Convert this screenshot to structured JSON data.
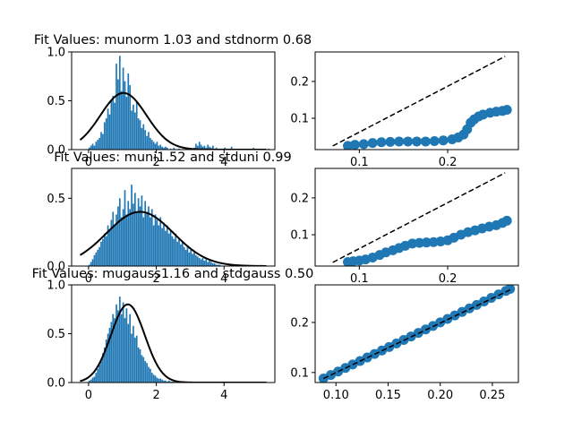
{
  "figure": {
    "background": "#ffffff",
    "bar_color": "#1f77b4",
    "fit_color": "#000000",
    "qq_color": "#1f77b4"
  },
  "chart_data": [
    {
      "type": "bar",
      "panel": "hist-norm",
      "title": "Fit Values: munorm 1.03 and stdnorm 0.68",
      "xlabel": "",
      "ylabel": "",
      "xlim": [
        -0.5,
        5.5
      ],
      "ylim": [
        0,
        1.0
      ],
      "xticks": [
        0,
        2,
        4
      ],
      "yticks": [
        0.0,
        0.5,
        1.0
      ],
      "ytick_labels": [
        "0.0",
        "0.5",
        "1.0"
      ],
      "bin_start": 0.0,
      "bin_width": 0.05,
      "values": [
        0.02,
        0.04,
        0.06,
        0.04,
        0.08,
        0.1,
        0.12,
        0.18,
        0.16,
        0.28,
        0.32,
        0.42,
        0.36,
        0.5,
        0.55,
        0.48,
        0.88,
        0.72,
        0.96,
        0.6,
        0.84,
        0.7,
        0.54,
        0.78,
        0.66,
        0.4,
        0.46,
        0.38,
        0.5,
        0.32,
        0.3,
        0.22,
        0.26,
        0.2,
        0.14,
        0.18,
        0.12,
        0.1,
        0.08,
        0.06,
        0.08,
        0.04,
        0.05,
        0.03,
        0.02,
        0.03,
        0.02,
        0,
        0.01,
        0,
        0.02,
        0,
        0,
        0.01,
        0,
        0,
        0,
        0,
        0,
        0,
        0,
        0,
        0.02,
        0.06,
        0.04,
        0.08,
        0.05,
        0.03,
        0.04,
        0.02,
        0.05,
        0.03,
        0.02,
        0.04,
        0.01,
        0.02,
        0,
        0,
        0.01,
        0,
        0.02,
        0.01,
        0,
        0,
        0.03,
        0.01,
        0,
        0,
        0,
        0,
        0,
        0.01,
        0,
        0,
        0,
        0,
        0,
        0.02,
        0,
        0,
        0,
        0,
        0,
        0,
        0,
        0,
        0.01
      ],
      "fit": {
        "mu": 1.03,
        "sigma": 0.68,
        "peak": 0.58,
        "x_range": [
          -0.25,
          5.25
        ]
      }
    },
    {
      "type": "scatter",
      "panel": "qq-norm",
      "title": "",
      "xlim": [
        0.05,
        0.28
      ],
      "ylim": [
        0.015,
        0.28
      ],
      "xticks": [
        0.1,
        0.2
      ],
      "xtick_labels": [
        "0.1",
        "0.2"
      ],
      "yticks": [
        0.1,
        0.2
      ],
      "ytick_labels": [
        "0.1",
        "0.2"
      ],
      "reference_line": [
        [
          0.07,
          0.025
        ],
        [
          0.265,
          0.268
        ]
      ],
      "points": [
        [
          0.087,
          0.025
        ],
        [
          0.095,
          0.028
        ],
        [
          0.105,
          0.03
        ],
        [
          0.115,
          0.033
        ],
        [
          0.125,
          0.035
        ],
        [
          0.135,
          0.036
        ],
        [
          0.145,
          0.037
        ],
        [
          0.155,
          0.037
        ],
        [
          0.165,
          0.037
        ],
        [
          0.175,
          0.037
        ],
        [
          0.185,
          0.038
        ],
        [
          0.195,
          0.04
        ],
        [
          0.205,
          0.043
        ],
        [
          0.212,
          0.048
        ],
        [
          0.218,
          0.056
        ],
        [
          0.222,
          0.07
        ],
        [
          0.226,
          0.088
        ],
        [
          0.23,
          0.097
        ],
        [
          0.235,
          0.105
        ],
        [
          0.24,
          0.11
        ],
        [
          0.248,
          0.115
        ],
        [
          0.255,
          0.118
        ],
        [
          0.262,
          0.12
        ],
        [
          0.267,
          0.123
        ]
      ]
    },
    {
      "type": "bar",
      "panel": "hist-uni",
      "title": "Fit Values: muni1.52 and stduni 0.99",
      "xlabel": "",
      "ylabel": "",
      "xlim": [
        -0.5,
        5.5
      ],
      "ylim": [
        0,
        0.72
      ],
      "xticks": [
        0,
        2,
        4
      ],
      "yticks": [
        0.0,
        0.5
      ],
      "ytick_labels": [
        "0.0",
        "0.5"
      ],
      "bin_start": 0.0,
      "bin_width": 0.05,
      "values": [
        0.01,
        0.03,
        0.05,
        0.08,
        0.1,
        0.12,
        0.14,
        0.18,
        0.2,
        0.24,
        0.22,
        0.3,
        0.26,
        0.34,
        0.4,
        0.3,
        0.38,
        0.44,
        0.5,
        0.36,
        0.42,
        0.56,
        0.38,
        0.48,
        0.42,
        0.6,
        0.46,
        0.54,
        0.4,
        0.5,
        0.44,
        0.52,
        0.36,
        0.48,
        0.4,
        0.44,
        0.36,
        0.42,
        0.3,
        0.38,
        0.34,
        0.3,
        0.36,
        0.28,
        0.32,
        0.26,
        0.3,
        0.24,
        0.26,
        0.22,
        0.2,
        0.24,
        0.18,
        0.2,
        0.16,
        0.18,
        0.14,
        0.12,
        0.15,
        0.1,
        0.12,
        0.09,
        0.1,
        0.08,
        0.07,
        0.06,
        0.05,
        0.06,
        0.04,
        0.05,
        0.03,
        0.04,
        0.03,
        0.02,
        0.02,
        0.01,
        0.01,
        0.01
      ],
      "fit": {
        "mu": 1.52,
        "sigma": 0.99,
        "peak": 0.4,
        "x_range": [
          -0.25,
          5.25
        ]
      }
    },
    {
      "type": "scatter",
      "panel": "qq-uni",
      "title": "",
      "xlim": [
        0.05,
        0.28
      ],
      "ylim": [
        0.015,
        0.28
      ],
      "xticks": [
        0.1,
        0.2
      ],
      "xtick_labels": [
        "0.1",
        "0.2"
      ],
      "yticks": [
        0.1,
        0.2
      ],
      "ytick_labels": [
        "0.1",
        "0.2"
      ],
      "reference_line": [
        [
          0.07,
          0.025
        ],
        [
          0.265,
          0.268
        ]
      ],
      "points": [
        [
          0.087,
          0.026
        ],
        [
          0.093,
          0.028
        ],
        [
          0.1,
          0.03
        ],
        [
          0.107,
          0.033
        ],
        [
          0.115,
          0.038
        ],
        [
          0.123,
          0.045
        ],
        [
          0.13,
          0.052
        ],
        [
          0.138,
          0.058
        ],
        [
          0.145,
          0.064
        ],
        [
          0.152,
          0.07
        ],
        [
          0.16,
          0.076
        ],
        [
          0.168,
          0.078
        ],
        [
          0.176,
          0.079
        ],
        [
          0.184,
          0.08
        ],
        [
          0.192,
          0.082
        ],
        [
          0.2,
          0.085
        ],
        [
          0.207,
          0.092
        ],
        [
          0.215,
          0.1
        ],
        [
          0.223,
          0.107
        ],
        [
          0.231,
          0.112
        ],
        [
          0.239,
          0.117
        ],
        [
          0.247,
          0.122
        ],
        [
          0.255,
          0.126
        ],
        [
          0.262,
          0.132
        ],
        [
          0.267,
          0.138
        ]
      ]
    },
    {
      "type": "bar",
      "panel": "hist-gauss",
      "title": "Fit Values: mugauss1.16 and stdgauss 0.50",
      "xlabel": "",
      "ylabel": "",
      "xlim": [
        -0.5,
        5.5
      ],
      "ylim": [
        0,
        1.0
      ],
      "xticks": [
        0,
        2,
        4
      ],
      "xtick_labels": [
        "0",
        "2",
        "4"
      ],
      "yticks": [
        0.0,
        0.5,
        1.0
      ],
      "ytick_labels": [
        "0.0",
        "0.5",
        "1.0"
      ],
      "bin_start": 0.0,
      "bin_width": 0.05,
      "values": [
        0.02,
        0.03,
        0.05,
        0.06,
        0.1,
        0.14,
        0.18,
        0.22,
        0.3,
        0.36,
        0.44,
        0.5,
        0.56,
        0.62,
        0.7,
        0.66,
        0.8,
        0.74,
        0.88,
        0.7,
        0.82,
        0.66,
        0.76,
        0.6,
        0.7,
        0.5,
        0.58,
        0.46,
        0.48,
        0.36,
        0.34,
        0.28,
        0.26,
        0.22,
        0.2,
        0.16,
        0.14,
        0.1,
        0.08,
        0.07,
        0.05,
        0.04,
        0.04,
        0.03,
        0.02,
        0.02,
        0.01,
        0.02,
        0.01,
        0.01,
        0.01,
        0,
        0.01
      ],
      "fit": {
        "mu": 1.16,
        "sigma": 0.5,
        "peak": 0.8,
        "x_range": [
          -0.25,
          5.25
        ]
      }
    },
    {
      "type": "scatter",
      "panel": "qq-gauss",
      "title": "",
      "xlim": [
        0.08,
        0.275
      ],
      "ylim": [
        0.08,
        0.275
      ],
      "xticks": [
        0.1,
        0.15,
        0.2,
        0.25
      ],
      "xtick_labels": [
        "0.10",
        "0.15",
        "0.20",
        "0.25"
      ],
      "yticks": [
        0.1,
        0.2
      ],
      "ytick_labels": [
        "0.1",
        "0.2"
      ],
      "reference_line": [
        [
          0.088,
          0.088
        ],
        [
          0.267,
          0.265
        ]
      ],
      "points": [
        [
          0.088,
          0.088
        ],
        [
          0.095,
          0.095
        ],
        [
          0.102,
          0.102
        ],
        [
          0.109,
          0.109
        ],
        [
          0.116,
          0.116
        ],
        [
          0.123,
          0.123
        ],
        [
          0.13,
          0.13
        ],
        [
          0.137,
          0.137
        ],
        [
          0.144,
          0.144
        ],
        [
          0.151,
          0.151
        ],
        [
          0.158,
          0.158
        ],
        [
          0.165,
          0.165
        ],
        [
          0.172,
          0.172
        ],
        [
          0.179,
          0.179
        ],
        [
          0.186,
          0.186
        ],
        [
          0.193,
          0.193
        ],
        [
          0.2,
          0.2
        ],
        [
          0.207,
          0.207
        ],
        [
          0.214,
          0.214
        ],
        [
          0.221,
          0.221
        ],
        [
          0.228,
          0.228
        ],
        [
          0.235,
          0.235
        ],
        [
          0.242,
          0.242
        ],
        [
          0.249,
          0.249
        ],
        [
          0.256,
          0.256
        ],
        [
          0.263,
          0.263
        ],
        [
          0.267,
          0.267
        ]
      ]
    }
  ]
}
